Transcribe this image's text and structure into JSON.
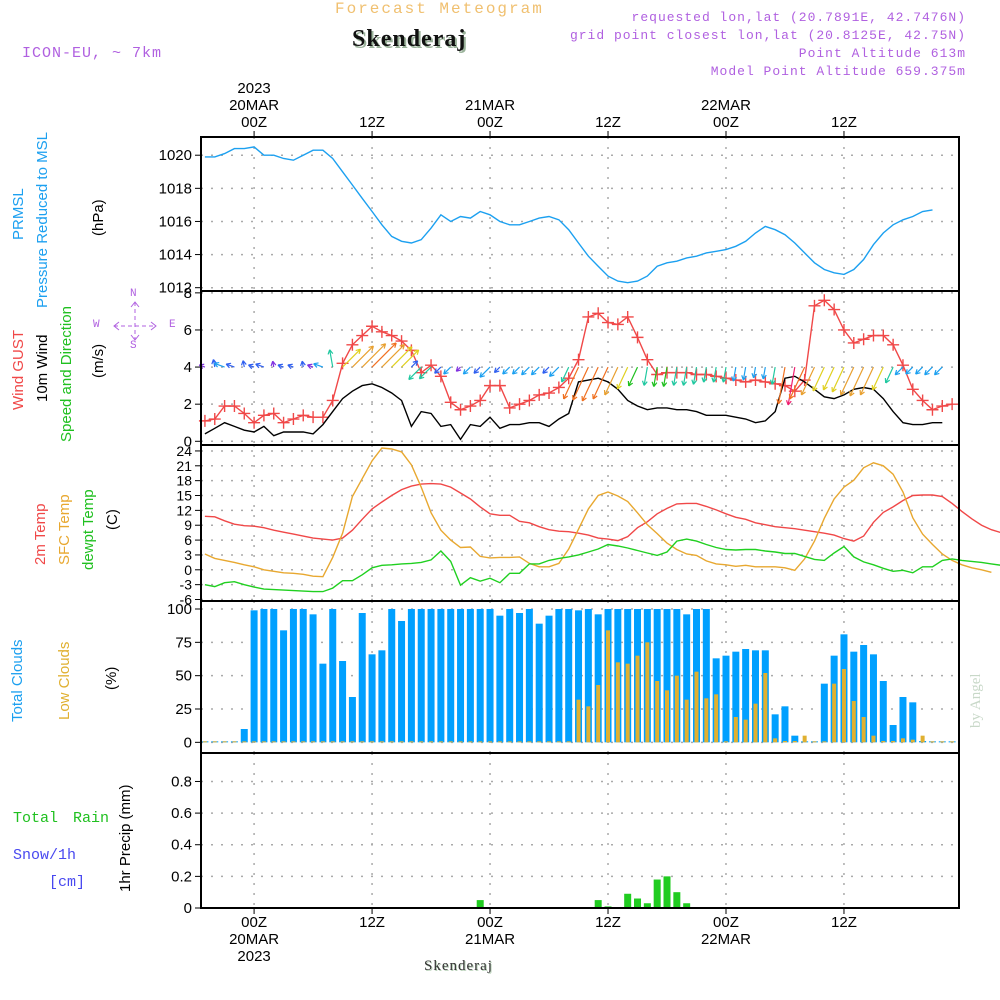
{
  "header": {
    "title": "Forecast Meteogram",
    "station": "Skenderaj",
    "model": "ICON-EU, ~ 7km",
    "requested": "requested lon,lat (20.7891E, 42.7476N)",
    "grid_point": "grid point closest lon,lat (20.8125E, 42.75N)",
    "point_altitude": "Point Altitude 613m",
    "model_altitude": "Model Point Altitude 659.375m",
    "footer_station": "Skenderaj",
    "watermark": "by Angel"
  },
  "time_axis": {
    "top_ticks": [
      {
        "hour": 0,
        "lines": [
          "2023",
          "20MAR",
          "00Z"
        ]
      },
      {
        "hour": 12,
        "lines": [
          "12Z"
        ]
      },
      {
        "hour": 24,
        "lines": [
          "21MAR",
          "00Z"
        ]
      },
      {
        "hour": 36,
        "lines": [
          "12Z"
        ]
      },
      {
        "hour": 48,
        "lines": [
          "22MAR",
          "00Z"
        ]
      },
      {
        "hour": 60,
        "lines": [
          "12Z"
        ]
      }
    ],
    "bottom_ticks": [
      {
        "hour": 0,
        "lines": [
          "00Z",
          "20MAR",
          "2023"
        ]
      },
      {
        "hour": 12,
        "lines": [
          "12Z"
        ]
      },
      {
        "hour": 24,
        "lines": [
          "00Z",
          "21MAR"
        ]
      },
      {
        "hour": 36,
        "lines": [
          "12Z"
        ]
      },
      {
        "hour": 48,
        "lines": [
          "00Z",
          "22MAR"
        ]
      },
      {
        "hour": 60,
        "lines": [
          "12Z"
        ]
      }
    ],
    "range_hours": [
      -5.4,
      71.7
    ]
  },
  "panel_labels": {
    "pressure": {
      "l1": "PRMSL",
      "l2": "Pressure Reduced to MSL",
      "unit": "(hPa)"
    },
    "wind": {
      "l1": "Wind GUST",
      "l2": "10m Wind",
      "l3": "Speed and Direction",
      "unit": "(m/s)",
      "compass": {
        "n": "N",
        "s": "S",
        "e": "E",
        "w": "W"
      }
    },
    "temp": {
      "l1": "2m Temp",
      "l2": "SFC Temp",
      "l3": "dewpt Temp",
      "unit": "(C)"
    },
    "clouds": {
      "l1": "Total Clouds",
      "l2": "Low Clouds",
      "unit": "(%)"
    },
    "precip": {
      "l1": "Total",
      "l1b": "Rain",
      "l2": "Snow/1h",
      "l3": "[cm]",
      "unit": "1hr Precip (mm)"
    }
  },
  "colors": {
    "pressure": "#1ca0f0",
    "gust": "#f04848",
    "wind": "#000000",
    "t2m": "#f04848",
    "tsfc": "#e8a830",
    "dewpt": "#20d020",
    "total_clouds": "#00a0ff",
    "low_clouds": "#e0b030",
    "rain": "#20cc20",
    "snow": "#4848f0",
    "label_purple": "#b060e0"
  },
  "chart_data": [
    {
      "type": "line",
      "title": "PRMSL Pressure Reduced to MSL",
      "ylabel": "(hPa)",
      "ylim": [
        1011.8,
        1021.1
      ],
      "yticks": [
        1012,
        1014,
        1016,
        1018,
        1020
      ],
      "grid": true,
      "x_hours_start": -5,
      "series": [
        {
          "name": "PRMSL",
          "values": [
            1019.9,
            1019.9,
            1020.1,
            1020.4,
            1020.4,
            1020.5,
            1020.0,
            1020.0,
            1019.8,
            1019.7,
            1020.0,
            1020.3,
            1020.3,
            1019.8,
            1019.0,
            1018.2,
            1017.4,
            1016.6,
            1015.8,
            1015.1,
            1014.8,
            1014.7,
            1014.9,
            1015.6,
            1016.4,
            1016.0,
            1016.3,
            1016.2,
            1016.6,
            1016.4,
            1016.0,
            1015.8,
            1015.8,
            1016.0,
            1016.2,
            1016.3,
            1016.1,
            1015.5,
            1014.7,
            1013.9,
            1013.3,
            1012.7,
            1012.4,
            1012.3,
            1012.4,
            1012.7,
            1013.3,
            1013.5,
            1013.6,
            1013.8,
            1013.9,
            1014.1,
            1014.2,
            1014.3,
            1014.5,
            1014.8,
            1015.3,
            1015.7,
            1015.5,
            1015.2,
            1014.7,
            1014.1,
            1013.5,
            1013.1,
            1012.9,
            1012.8,
            1013.1,
            1013.7,
            1014.6,
            1015.3,
            1015.8,
            1016.1,
            1016.3,
            1016.6,
            1016.7
          ]
        }
      ]
    },
    {
      "type": "line",
      "title": "Wind GUST / 10m Wind Speed and Direction",
      "ylabel": "(m/s)",
      "ylim": [
        -0.2,
        8.1
      ],
      "yticks": [
        0,
        2,
        4,
        6,
        8
      ],
      "grid": true,
      "x_hours_start": -5,
      "series": [
        {
          "name": "Wind GUST",
          "values": [
            1.1,
            1.2,
            1.9,
            1.9,
            1.5,
            1.0,
            1.4,
            1.5,
            1.0,
            1.2,
            1.4,
            1.3,
            1.3,
            2.2,
            4.2,
            5.2,
            5.7,
            6.2,
            5.9,
            5.7,
            5.4,
            4.9,
            3.7,
            4.1,
            3.5,
            2.1,
            1.7,
            1.9,
            2.2,
            3.0,
            3.0,
            1.8,
            2.0,
            2.2,
            2.5,
            2.6,
            2.9,
            3.4,
            4.4,
            6.7,
            6.9,
            6.4,
            6.3,
            6.7,
            5.6,
            4.4,
            3.6,
            3.7,
            3.7,
            3.7,
            3.6,
            3.6,
            3.5,
            3.4,
            3.3,
            3.2,
            3.3,
            3.2,
            3.1,
            3.0,
            2.7,
            3.3,
            7.3,
            7.6,
            7.1,
            6.0,
            5.3,
            5.5,
            5.7,
            5.7,
            5.2,
            4.1,
            2.8,
            2.2,
            1.7,
            1.9,
            2.0
          ]
        },
        {
          "name": "10m Wind",
          "values": [
            0.4,
            0.7,
            1.0,
            0.8,
            0.6,
            0.5,
            0.8,
            0.3,
            0.5,
            0.5,
            0.5,
            0.4,
            0.9,
            1.6,
            2.3,
            2.7,
            3.0,
            3.1,
            2.9,
            2.6,
            2.2,
            0.8,
            1.6,
            1.5,
            0.8,
            0.9,
            0.1,
            0.9,
            0.8,
            1.3,
            0.7,
            0.9,
            0.9,
            1.0,
            1.0,
            0.8,
            1.2,
            1.5,
            3.2,
            3.3,
            3.4,
            3.2,
            2.8,
            2.2,
            1.9,
            1.7,
            1.8,
            1.8,
            1.7,
            1.7,
            1.6,
            1.4,
            1.4,
            1.4,
            1.3,
            1.2,
            1.0,
            1.1,
            1.6,
            3.4,
            3.5,
            3.2,
            2.8,
            2.4,
            2.3,
            2.5,
            2.8,
            2.9,
            2.8,
            2.3,
            1.6,
            1.0,
            0.9,
            0.9,
            1.0,
            1.0
          ]
        }
      ]
    },
    {
      "type": "line",
      "title": "2m Temp / SFC Temp / dewpt Temp",
      "ylabel": "(C)",
      "ylim": [
        -6.3,
        25.2
      ],
      "yticks": [
        -6,
        -3,
        0,
        3,
        6,
        9,
        12,
        15,
        18,
        21,
        24
      ],
      "grid": true,
      "x_hours_start": -5,
      "series": [
        {
          "name": "2m Temp",
          "values": [
            10.8,
            10.7,
            9.9,
            9.2,
            8.9,
            8.8,
            8.5,
            8.0,
            7.6,
            7.2,
            6.8,
            6.4,
            6.2,
            6.0,
            6.4,
            8.0,
            10.2,
            12.3,
            13.7,
            15.0,
            16.2,
            16.9,
            17.3,
            17.4,
            17.3,
            16.7,
            15.5,
            14.3,
            12.7,
            11.3,
            11.0,
            11.0,
            9.8,
            9.5,
            8.7,
            8.1,
            7.8,
            7.7,
            7.4,
            7.0,
            6.4,
            6.2,
            5.9,
            6.7,
            8.5,
            9.7,
            11.3,
            12.4,
            13.3,
            13.4,
            13.4,
            12.8,
            12.1,
            11.3,
            10.6,
            10.2,
            9.5,
            9.1,
            8.7,
            8.5,
            8.3,
            8.0,
            7.7,
            7.4,
            7.0,
            6.3,
            5.8,
            6.8,
            9.6,
            11.6,
            12.7,
            14.0,
            15.0,
            15.1,
            15.1,
            14.8,
            13.4,
            11.8,
            10.3,
            9.0,
            8.1,
            7.5,
            6.6
          ]
        },
        {
          "name": "SFC Temp",
          "values": [
            3.2,
            2.3,
            1.9,
            1.5,
            1.0,
            0.6,
            0.0,
            -0.3,
            -0.6,
            -0.7,
            -0.9,
            -1.3,
            -1.4,
            2.5,
            7.4,
            14.8,
            18.4,
            22.0,
            24.6,
            24.4,
            23.8,
            21.2,
            16.7,
            11.5,
            8.0,
            6.0,
            4.5,
            4.6,
            2.7,
            2.4,
            2.5,
            2.5,
            2.6,
            1.3,
            0.6,
            0.6,
            1.3,
            4.2,
            8.2,
            12.3,
            15.0,
            15.7,
            14.9,
            13.8,
            11.5,
            9.1,
            7.3,
            5.4,
            4.1,
            3.2,
            2.9,
            1.8,
            1.2,
            1.0,
            0.7,
            0.9,
            0.6,
            0.6,
            0.6,
            0.4,
            -0.1,
            2.2,
            5.8,
            10.4,
            14.3,
            16.7,
            18.1,
            20.6,
            21.6,
            21.0,
            19.3,
            15.7,
            10.5,
            7.2,
            5.1,
            3.2,
            1.9,
            1.0,
            0.4,
            0.0,
            -0.5
          ]
        },
        {
          "name": "dewpt Temp",
          "values": [
            -3.0,
            -3.4,
            -2.6,
            -2.4,
            -3.0,
            -3.5,
            -3.9,
            -4.0,
            -4.1,
            -4.2,
            -4.3,
            -4.4,
            -4.4,
            -3.7,
            -2.2,
            -2.2,
            -1.0,
            0.4,
            0.9,
            1.0,
            1.2,
            1.3,
            1.5,
            2.0,
            3.8,
            1.7,
            -3.1,
            -1.6,
            -2.3,
            -1.7,
            -2.6,
            -0.7,
            -0.7,
            1.2,
            1.2,
            1.9,
            2.3,
            2.6,
            3.0,
            3.6,
            4.2,
            5.1,
            4.8,
            4.4,
            3.9,
            3.4,
            2.9,
            3.6,
            5.8,
            6.2,
            5.8,
            5.1,
            4.5,
            4.1,
            4.0,
            4.1,
            4.1,
            3.8,
            3.6,
            3.3,
            3.3,
            2.7,
            2.1,
            1.9,
            3.4,
            4.7,
            2.6,
            1.6,
            1.0,
            0.3,
            -0.3,
            -0.1,
            -0.6,
            0.6,
            0.6,
            1.9,
            2.2,
            1.9,
            1.7,
            1.5,
            1.2,
            0.9
          ]
        }
      ]
    },
    {
      "type": "bar",
      "title": "Total Clouds / Low Clouds",
      "ylabel": "(%)",
      "ylim": [
        -8,
        106
      ],
      "yticks": [
        0,
        25,
        50,
        75,
        100
      ],
      "grid": true,
      "x_hours_start": -5,
      "series": [
        {
          "name": "Total Clouds",
          "values": [
            0,
            0,
            0,
            0,
            10,
            99,
            100,
            100,
            84,
            100,
            100,
            96,
            59,
            100,
            61,
            34,
            97,
            66,
            69,
            100,
            91,
            100,
            100,
            100,
            100,
            100,
            100,
            100,
            100,
            100,
            95,
            100,
            97,
            100,
            89,
            95,
            100,
            100,
            99,
            100,
            96,
            100,
            100,
            100,
            100,
            100,
            100,
            100,
            100,
            96,
            100,
            100,
            63,
            65,
            68,
            70,
            69,
            69,
            21,
            27,
            5,
            0,
            0,
            44,
            65,
            81,
            68,
            73,
            66,
            46,
            13,
            34,
            30,
            1,
            0,
            0,
            0,
            0,
            10,
            36
          ]
        },
        {
          "name": "Low Clouds",
          "values": [
            0,
            0,
            0,
            0,
            0,
            0,
            0,
            0,
            0,
            0,
            0,
            0,
            0,
            0,
            0,
            0,
            0,
            0,
            0,
            0,
            0,
            0,
            0,
            0,
            0,
            0,
            0,
            0,
            0,
            0,
            0,
            0,
            0,
            0,
            0,
            0,
            0,
            0,
            32,
            27,
            43,
            84,
            60,
            59,
            65,
            75,
            46,
            39,
            50,
            32,
            53,
            33,
            36,
            0,
            19,
            17,
            29,
            52,
            3,
            1,
            1,
            5,
            0,
            0,
            44,
            55,
            31,
            19,
            5,
            1,
            1,
            3,
            2,
            5,
            0,
            0,
            0,
            0,
            1,
            0
          ]
        }
      ]
    },
    {
      "type": "bar",
      "title": "1hr Precip",
      "ylabel": "1hr Precip (mm)",
      "ylim": [
        0,
        0.98
      ],
      "yticks": [
        0,
        0.2,
        0.4,
        0.6,
        0.8
      ],
      "grid": true,
      "x_hours_start": -5,
      "series": [
        {
          "name": "Total Rain",
          "values": [
            0,
            0,
            0,
            0,
            0,
            0,
            0,
            0,
            0,
            0,
            0,
            0,
            0,
            0,
            0,
            0,
            0,
            0,
            0,
            0,
            0,
            0,
            0,
            0,
            0,
            0,
            0,
            0,
            0.05,
            0,
            0,
            0,
            0,
            0,
            0,
            0,
            0,
            0,
            0,
            0,
            0.05,
            0.01,
            0,
            0.09,
            0.06,
            0.03,
            0.18,
            0.2,
            0.1,
            0.03,
            0,
            0,
            0,
            0,
            0,
            0,
            0,
            0,
            0,
            0,
            0,
            0,
            0,
            0,
            0,
            0,
            0,
            0,
            0,
            0,
            0,
            0,
            0,
            0,
            0,
            0,
            0
          ]
        },
        {
          "name": "Snow/1h",
          "values": []
        }
      ]
    }
  ]
}
